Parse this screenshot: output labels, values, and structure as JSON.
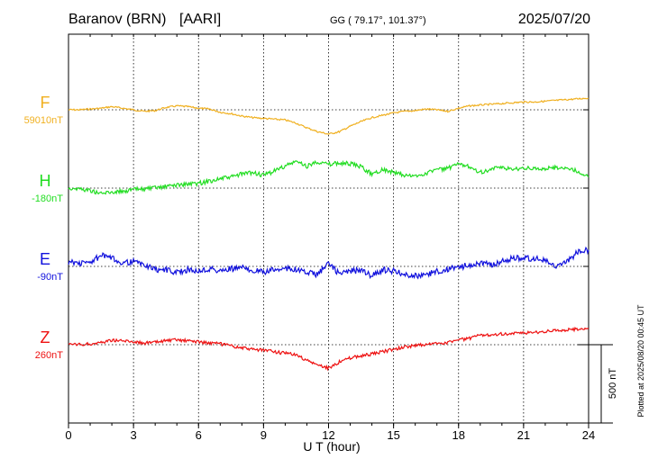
{
  "header": {
    "station": "Baranov (BRN)",
    "network": "[AARI]",
    "coords": "GG ( 79.17°, 101.37°)",
    "date": "2025/07/20"
  },
  "footer": {
    "scale_label": "500 nT",
    "plotted_note": "Plotted at 2025/08/20 00:45 UT"
  },
  "colors": {
    "F": "#f0b020",
    "H": "#22dd22",
    "E": "#1111dd",
    "Z": "#ee1111"
  },
  "chart_data": {
    "type": "line",
    "xlabel": "U T (hour)",
    "xlim": [
      0,
      24
    ],
    "x_ticks": [
      "0",
      "3",
      "6",
      "9",
      "12",
      "15",
      "18",
      "21",
      "24"
    ],
    "grid": true,
    "scale_bar_nT": 500,
    "x": [
      0,
      0.5,
      1,
      1.5,
      2,
      2.5,
      3,
      3.5,
      4,
      4.5,
      5,
      5.5,
      6,
      6.5,
      7,
      7.5,
      8,
      8.5,
      9,
      9.5,
      10,
      10.5,
      11,
      11.5,
      12,
      12.5,
      13,
      13.5,
      14,
      14.5,
      15,
      15.5,
      16,
      16.5,
      17,
      17.5,
      18,
      18.5,
      19,
      19.5,
      20,
      20.5,
      21,
      21.5,
      22,
      22.5,
      23,
      23.5,
      24
    ],
    "series": [
      {
        "name": "F",
        "baseline_label": "59010nT",
        "offset_nT": 59010,
        "values": [
          59010,
          59010,
          59015,
          59020,
          59030,
          59020,
          59010,
          59000,
          59005,
          59025,
          59035,
          59030,
          59020,
          59015,
          58995,
          58985,
          58970,
          58960,
          58955,
          58950,
          58945,
          58925,
          58895,
          58870,
          58855,
          58870,
          58905,
          58935,
          58960,
          58975,
          58990,
          59000,
          59005,
          59015,
          59010,
          59000,
          59020,
          59035,
          59040,
          59045,
          59050,
          59055,
          59060,
          59060,
          59065,
          59070,
          59075,
          59080,
          59085
        ]
      },
      {
        "name": "H",
        "baseline_label": "-180nT",
        "offset_nT": -180,
        "values": [
          -180,
          -185,
          -195,
          -215,
          -205,
          -200,
          -190,
          -185,
          -180,
          -170,
          -160,
          -155,
          -150,
          -135,
          -120,
          -110,
          -90,
          -80,
          -100,
          -70,
          -40,
          -10,
          -40,
          -10,
          -30,
          -20,
          -25,
          -45,
          -90,
          -60,
          -80,
          -100,
          -105,
          -85,
          -60,
          -55,
          -30,
          -40,
          -80,
          -60,
          -50,
          -60,
          -50,
          -60,
          -55,
          -50,
          -50,
          -75,
          -110
        ]
      },
      {
        "name": "E",
        "baseline_label": "-90nT",
        "offset_nT": -90,
        "values": [
          -60,
          -70,
          -65,
          -20,
          -40,
          -65,
          -60,
          -80,
          -110,
          -110,
          -130,
          -110,
          -120,
          -105,
          -120,
          -105,
          -100,
          -110,
          -130,
          -110,
          -100,
          -110,
          -130,
          -140,
          -70,
          -140,
          -120,
          -115,
          -150,
          -110,
          -120,
          -140,
          -150,
          -145,
          -120,
          -110,
          -95,
          -80,
          -70,
          -80,
          -60,
          -40,
          -35,
          -40,
          -50,
          -100,
          -60,
          0,
          15
        ]
      },
      {
        "name": "Z",
        "baseline_label": "260nT",
        "offset_nT": 260,
        "values": [
          260,
          260,
          265,
          275,
          290,
          285,
          280,
          270,
          275,
          285,
          290,
          285,
          280,
          270,
          265,
          250,
          240,
          230,
          225,
          215,
          205,
          195,
          160,
          130,
          110,
          150,
          175,
          190,
          200,
          215,
          230,
          245,
          255,
          260,
          270,
          275,
          290,
          300,
          320,
          325,
          330,
          330,
          335,
          340,
          345,
          350,
          355,
          360,
          365
        ]
      }
    ]
  }
}
